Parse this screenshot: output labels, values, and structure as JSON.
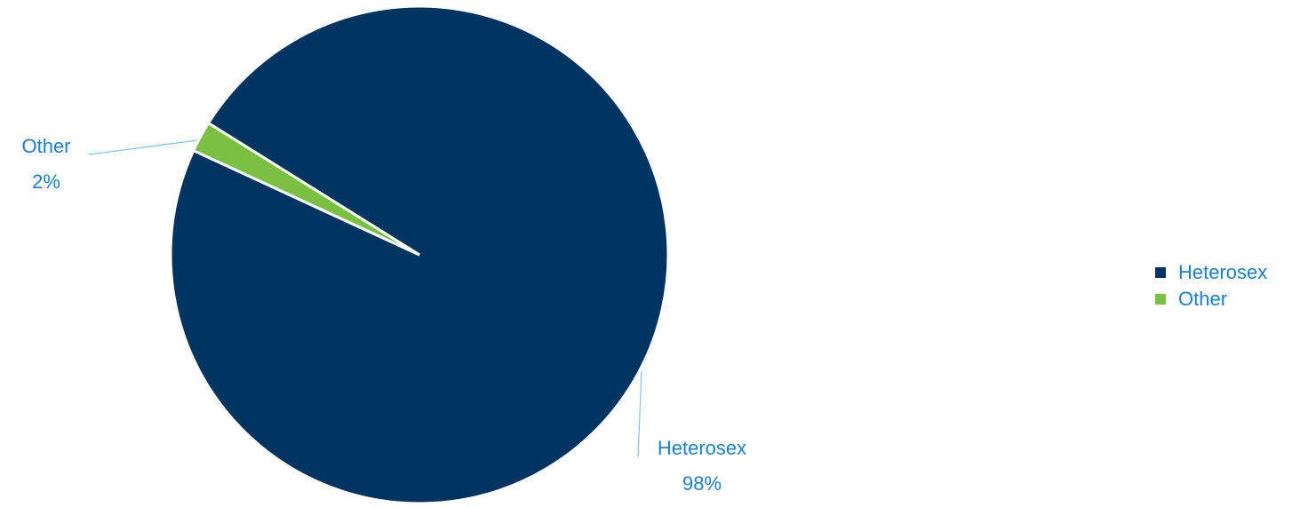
{
  "chart_data": {
    "type": "pie",
    "title": "",
    "slices": [
      {
        "label": "Heterosex",
        "value": 98,
        "data_label": "98%",
        "color": "#003561"
      },
      {
        "label": "Other",
        "value": 2,
        "data_label": "2%",
        "color": "#7ac143"
      }
    ],
    "legend_position": "right",
    "label_color": "#1a7fd4",
    "leader_line_color": "#7cc4ee"
  }
}
